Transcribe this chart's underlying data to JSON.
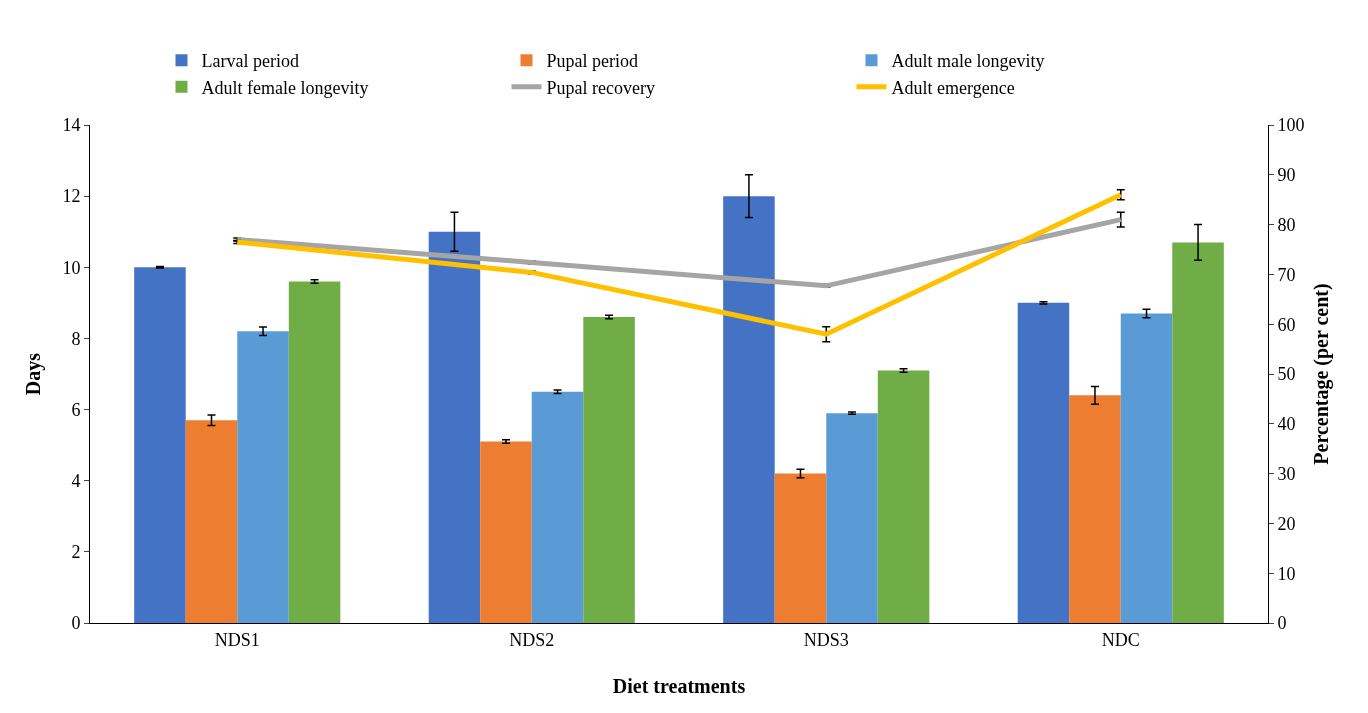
{
  "chart_data": {
    "type": "bar",
    "xlabel": "Diet treatments",
    "ylabel": "Days",
    "y2label": "Percentage (per cent)",
    "categories": [
      "NDS1",
      "NDS2",
      "NDS3",
      "NDC"
    ],
    "series": [
      {
        "name": "Larval period",
        "color": "#4472c4",
        "values": [
          10.0,
          11.0,
          12.0,
          9.0
        ],
        "errors": [
          0.02,
          0.55,
          0.6,
          0.03
        ]
      },
      {
        "name": "Pupal period",
        "color": "#ed7d31",
        "values": [
          5.7,
          5.1,
          4.2,
          6.4
        ],
        "errors": [
          0.15,
          0.05,
          0.12,
          0.25
        ]
      },
      {
        "name": "Adult male longevity",
        "color": "#5b9bd5",
        "values": [
          8.2,
          6.5,
          5.9,
          8.7
        ],
        "errors": [
          0.12,
          0.05,
          0.03,
          0.12
        ]
      },
      {
        "name": "Adult female longevity",
        "color": "#70ad47",
        "values": [
          9.6,
          8.6,
          7.1,
          10.7
        ],
        "errors": [
          0.05,
          0.05,
          0.05,
          0.5
        ]
      },
      {
        "name": "Pupal recovery",
        "color": "#a5a5a5",
        "type": "line",
        "axis": "y2",
        "values": [
          77,
          72.4,
          67.7,
          81
        ],
        "errors": [
          0.3,
          0.3,
          0.3,
          1.5
        ]
      },
      {
        "name": "Adult emergence",
        "color": "#ffc000",
        "type": "line",
        "axis": "y2",
        "values": [
          76.5,
          70.4,
          58,
          86
        ],
        "errors": [
          0.3,
          0.3,
          1.5,
          1
        ]
      }
    ],
    "ylim": [
      0,
      14
    ],
    "yticks": [
      0,
      2,
      4,
      6,
      8,
      10,
      12,
      14
    ],
    "y2lim": [
      0,
      100
    ],
    "y2ticks": [
      0,
      10,
      20,
      30,
      40,
      50,
      60,
      70,
      80,
      90,
      100
    ],
    "grid": false,
    "legend": "top",
    "marker": "none"
  }
}
